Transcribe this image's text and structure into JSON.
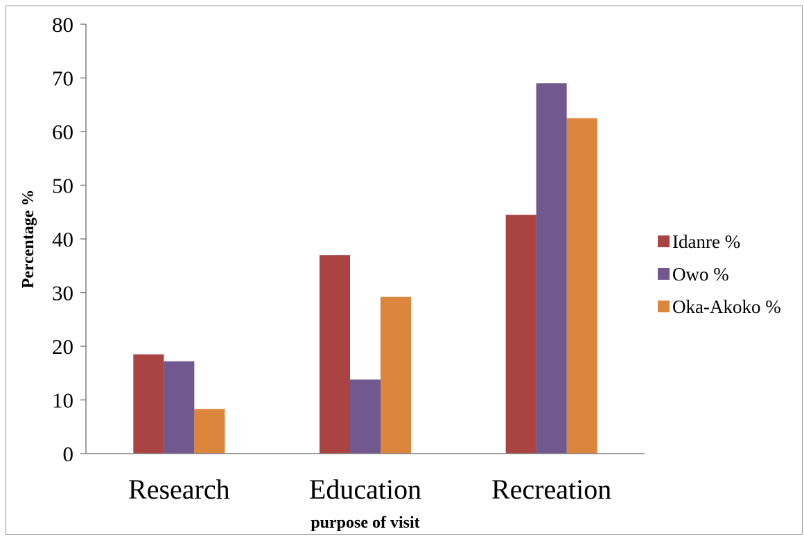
{
  "chart_data": {
    "type": "bar",
    "title": "",
    "xlabel": "purpose of visit",
    "ylabel": "Percentage %",
    "ylim": [
      0,
      80
    ],
    "yticks": [
      "0",
      "10",
      "20",
      "30",
      "40",
      "50",
      "60",
      "70",
      "80"
    ],
    "categories": [
      "Research",
      "Education",
      "Recreation"
    ],
    "series": [
      {
        "name": "Idanre %",
        "values": [
          18.5,
          37.0,
          44.5
        ],
        "color": "#a94442"
      },
      {
        "name": "Owo %",
        "values": [
          17.2,
          13.8,
          69.0
        ],
        "color": "#71588f"
      },
      {
        "name": "Oka-Akoko %",
        "values": [
          8.3,
          29.2,
          62.5
        ],
        "color": "#dc853d"
      }
    ],
    "grid": false,
    "legend_position": "right"
  }
}
